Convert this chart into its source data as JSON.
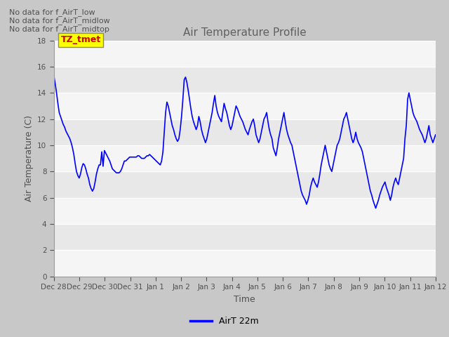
{
  "title": "Air Temperature Profile",
  "xlabel": "Time",
  "ylabel": "Air Temperature (C)",
  "ylim": [
    0,
    18
  ],
  "yticks": [
    0,
    2,
    4,
    6,
    8,
    10,
    12,
    14,
    16,
    18
  ],
  "line_color": "#0000ff",
  "line_width": 1.2,
  "legend_label": "AirT 22m",
  "annotations": [
    "No data for f_AirT_low",
    "No data for f_AirT_midlow",
    "No data for f_AirT_midtop"
  ],
  "annotation_box_label": "TZ_tmet",
  "annotation_box_color": "#ffff00",
  "annotation_box_text_color": "#cc0000",
  "fig_bg_color": "#c8c8c8",
  "plot_bg_color": "#e8e8e8",
  "title_color": "#606060",
  "axis_label_color": "#505050",
  "tick_label_color": "#505050",
  "grid_color": "#ffffff",
  "band_color_light": "#f0f0f0",
  "band_color_dark": "#e0e0e0",
  "temp_data": [
    15.3,
    14.7,
    14.0,
    13.2,
    12.5,
    12.2,
    11.9,
    11.6,
    11.4,
    11.1,
    10.9,
    10.7,
    10.5,
    10.2,
    9.8,
    9.3,
    8.6,
    8.0,
    7.7,
    7.5,
    7.8,
    8.3,
    8.6,
    8.5,
    8.2,
    7.8,
    7.5,
    7.0,
    6.7,
    6.5,
    6.7,
    7.2,
    7.8,
    8.2,
    8.5,
    8.5,
    9.5,
    8.4,
    9.6,
    9.4,
    9.2,
    9.0,
    8.8,
    8.5,
    8.2,
    8.1,
    8.0,
    7.9,
    7.9,
    7.9,
    8.0,
    8.2,
    8.5,
    8.8,
    8.8,
    8.9,
    9.0,
    9.1,
    9.1,
    9.1,
    9.1,
    9.1,
    9.1,
    9.2,
    9.2,
    9.1,
    9.0,
    9.0,
    9.0,
    9.1,
    9.2,
    9.2,
    9.3,
    9.2,
    9.1,
    9.0,
    8.9,
    8.8,
    8.7,
    8.6,
    8.5,
    8.8,
    9.5,
    11.0,
    12.5,
    13.3,
    13.0,
    12.5,
    12.0,
    11.5,
    11.2,
    10.8,
    10.5,
    10.3,
    10.5,
    11.2,
    12.2,
    13.5,
    15.0,
    15.2,
    14.8,
    14.2,
    13.5,
    12.8,
    12.2,
    11.8,
    11.5,
    11.2,
    11.5,
    12.2,
    11.8,
    11.2,
    10.8,
    10.5,
    10.2,
    10.5,
    11.0,
    11.5,
    12.0,
    12.5,
    13.2,
    13.8,
    13.0,
    12.5,
    12.2,
    12.0,
    11.8,
    12.5,
    13.2,
    12.8,
    12.5,
    12.0,
    11.5,
    11.2,
    11.5,
    12.0,
    12.5,
    13.0,
    12.8,
    12.5,
    12.2,
    12.0,
    11.8,
    11.5,
    11.2,
    11.0,
    10.8,
    11.2,
    11.5,
    11.8,
    12.0,
    11.5,
    10.8,
    10.5,
    10.2,
    10.5,
    11.0,
    11.5,
    12.0,
    12.2,
    12.5,
    11.8,
    11.2,
    10.8,
    10.5,
    9.8,
    9.5,
    9.2,
    9.8,
    10.5,
    11.0,
    11.5,
    12.0,
    12.5,
    11.8,
    11.2,
    10.8,
    10.5,
    10.2,
    10.0,
    9.5,
    9.0,
    8.5,
    8.0,
    7.5,
    7.0,
    6.5,
    6.2,
    6.0,
    5.8,
    5.5,
    5.8,
    6.2,
    6.8,
    7.2,
    7.5,
    7.2,
    7.0,
    6.8,
    7.2,
    7.8,
    8.5,
    9.0,
    9.5,
    10.0,
    9.5,
    9.0,
    8.5,
    8.2,
    8.0,
    8.5,
    9.0,
    9.5,
    10.0,
    10.2,
    10.5,
    11.0,
    11.5,
    12.0,
    12.2,
    12.5,
    12.0,
    11.5,
    11.0,
    10.5,
    10.2,
    10.5,
    11.0,
    10.5,
    10.2,
    10.0,
    9.8,
    9.5,
    9.0,
    8.5,
    8.0,
    7.5,
    7.0,
    6.5,
    6.2,
    5.8,
    5.5,
    5.2,
    5.5,
    5.8,
    6.2,
    6.5,
    6.8,
    7.0,
    7.2,
    6.8,
    6.5,
    6.2,
    5.8,
    6.2,
    6.8,
    7.2,
    7.5,
    7.2,
    7.0,
    7.5,
    8.0,
    8.5,
    9.0,
    10.5,
    11.5,
    13.5,
    14.0,
    13.5,
    13.0,
    12.5,
    12.2,
    12.0,
    11.8,
    11.5,
    11.2,
    11.0,
    10.8,
    10.5,
    10.2,
    10.5,
    11.0,
    11.5,
    10.8,
    10.5,
    10.2,
    10.5,
    10.8
  ]
}
